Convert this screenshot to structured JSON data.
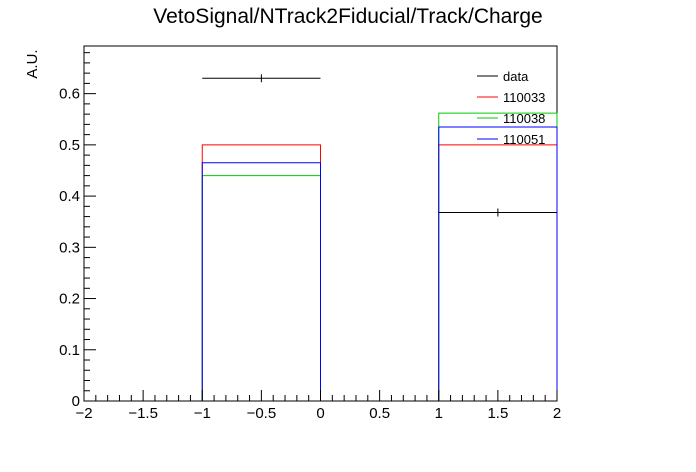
{
  "chart_data": {
    "type": "histogram",
    "title": "VetoSignal/NTrack2Fiducial/Track/Charge",
    "xlabel": "",
    "ylabel": "A.U.",
    "xlim": [
      -2,
      2
    ],
    "ylim": [
      0,
      0.693
    ],
    "x_ticks": [
      -2,
      -1.5,
      -1,
      -0.5,
      0,
      0.5,
      1,
      1.5,
      2
    ],
    "x_tick_labels": [
      "−2",
      "−1.5",
      "−1",
      "−0.5",
      "0",
      "0.5",
      "1",
      "1.5",
      "2"
    ],
    "y_ticks": [
      0,
      0.1,
      0.2,
      0.3,
      0.4,
      0.5,
      0.6
    ],
    "y_tick_labels": [
      "0",
      "0.1",
      "0.2",
      "0.3",
      "0.4",
      "0.5",
      "0.6"
    ],
    "bin_edges": [
      -2,
      -1,
      0,
      1,
      2
    ],
    "legend_position": "top-right",
    "series": [
      {
        "name": "data",
        "color": "#000000",
        "style": "points",
        "values": [
          0,
          0.63,
          0,
          0.368
        ]
      },
      {
        "name": "110033",
        "color": "#ff0000",
        "style": "step",
        "values": [
          0,
          0.5,
          0,
          0.5
        ]
      },
      {
        "name": "110038",
        "color": "#00cc00",
        "style": "step",
        "values": [
          0,
          0.44,
          0,
          0.562
        ]
      },
      {
        "name": "110051",
        "color": "#0000ff",
        "style": "step",
        "values": [
          0,
          0.465,
          0,
          0.535
        ]
      }
    ]
  }
}
